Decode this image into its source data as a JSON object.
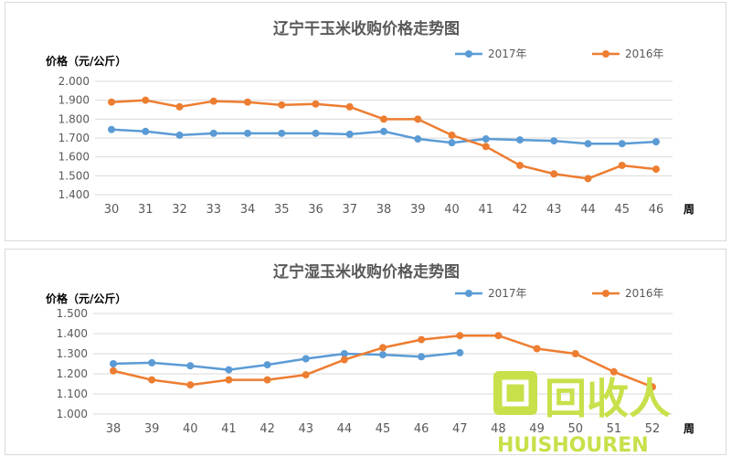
{
  "chart_data": [
    {
      "type": "line",
      "title": "辽宁干玉米收购价格走势图",
      "ylabel": "价格（元/公斤）",
      "xlabel": "周",
      "categories": [
        "30",
        "31",
        "32",
        "33",
        "34",
        "35",
        "36",
        "37",
        "38",
        "39",
        "40",
        "41",
        "42",
        "43",
        "44",
        "45",
        "46"
      ],
      "ylim": [
        1.4,
        2.0
      ],
      "yticks": [
        "1.400",
        "1.500",
        "1.600",
        "1.700",
        "1.800",
        "1.900",
        "2.000"
      ],
      "grid": true,
      "legend": "top-right",
      "series": [
        {
          "name": "2017年",
          "color": "#5b9bd5",
          "values": [
            1.745,
            1.735,
            1.715,
            1.725,
            1.725,
            1.725,
            1.725,
            1.72,
            1.735,
            1.695,
            1.675,
            1.695,
            1.69,
            1.685,
            1.67,
            1.67,
            1.68
          ]
        },
        {
          "name": "2016年",
          "color": "#ed7d31",
          "values": [
            1.89,
            1.9,
            1.865,
            1.895,
            1.89,
            1.875,
            1.88,
            1.865,
            1.8,
            1.8,
            1.715,
            1.655,
            1.555,
            1.51,
            1.485,
            1.555,
            1.535
          ]
        }
      ]
    },
    {
      "type": "line",
      "title": "辽宁湿玉米收购价格走势图",
      "ylabel": "价格（元/公斤）",
      "xlabel": "周",
      "categories": [
        "38",
        "39",
        "40",
        "41",
        "42",
        "43",
        "44",
        "45",
        "46",
        "47",
        "48",
        "49",
        "50",
        "51",
        "52"
      ],
      "ylim": [
        1.0,
        1.5
      ],
      "yticks": [
        "1.000",
        "1.100",
        "1.200",
        "1.300",
        "1.400",
        "1.500"
      ],
      "grid": true,
      "legend": "top-right",
      "series": [
        {
          "name": "2017年",
          "color": "#5b9bd5",
          "values": [
            1.25,
            1.255,
            1.24,
            1.22,
            1.245,
            1.275,
            1.3,
            1.295,
            1.285,
            1.305,
            null,
            null,
            null,
            null,
            null
          ]
        },
        {
          "name": "2016年",
          "color": "#ed7d31",
          "values": [
            1.215,
            1.17,
            1.145,
            1.17,
            1.17,
            1.195,
            1.27,
            1.33,
            1.37,
            1.39,
            1.39,
            1.325,
            1.3,
            1.21,
            1.135
          ]
        }
      ]
    }
  ],
  "watermark": {
    "big": "回收人",
    "small": "HUISHOUREN",
    "color": "#c8e04a"
  }
}
